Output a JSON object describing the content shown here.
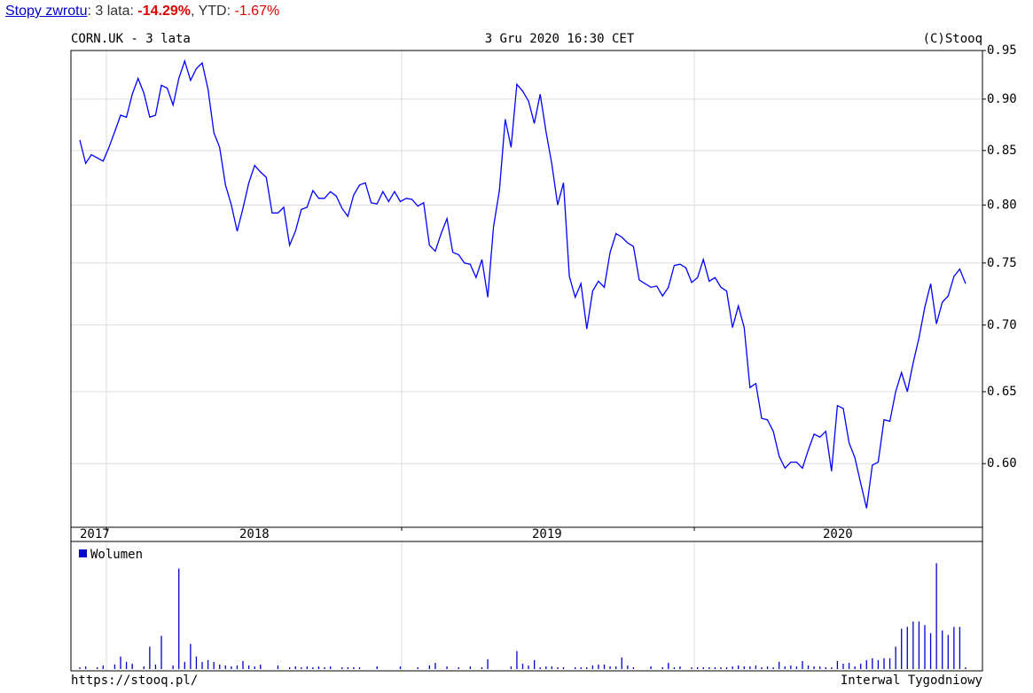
{
  "header": {
    "link": "Stopy zwrotu",
    "label1": ": 3 lata: ",
    "value1": "-14.29%",
    "label2": ", YTD: ",
    "value2": "-1.67%"
  },
  "chart_data": {
    "type": "line",
    "title": "CORN.UK - 3 lata",
    "date": "3 Gru 2020 16:30 CET",
    "copyright": "(C)Stooq",
    "footer_left": "https://stooq.pl/",
    "footer_right": "Interwal Tygodniowy",
    "log_scale": true,
    "grid": true,
    "color": "#0000ff",
    "ylim": [
      0.559,
      0.95
    ],
    "yticks": [
      {
        "value": 0.6,
        "label": "0.60"
      },
      0.65,
      {
        "value": 0.7,
        "label": "0.70"
      },
      0.75,
      {
        "value": 0.8,
        "label": "0.80"
      },
      0.85,
      {
        "value": 0.9,
        "label": "0.90"
      },
      0.95
    ],
    "x_labels": [
      "2017",
      "2018",
      "2019",
      "2020"
    ],
    "values": [
      0.86,
      0.838,
      0.846,
      0.843,
      0.84,
      0.853,
      0.868,
      0.884,
      0.882,
      0.905,
      0.921,
      0.906,
      0.882,
      0.884,
      0.914,
      0.911,
      0.894,
      0.921,
      0.939,
      0.919,
      0.931,
      0.937,
      0.91,
      0.867,
      0.853,
      0.818,
      0.8,
      0.777,
      0.797,
      0.82,
      0.836,
      0.83,
      0.825,
      0.793,
      0.793,
      0.798,
      0.765,
      0.777,
      0.796,
      0.798,
      0.813,
      0.806,
      0.806,
      0.812,
      0.808,
      0.797,
      0.79,
      0.809,
      0.818,
      0.82,
      0.802,
      0.801,
      0.812,
      0.803,
      0.812,
      0.803,
      0.806,
      0.805,
      0.799,
      0.802,
      0.765,
      0.76,
      0.775,
      0.788,
      0.759,
      0.757,
      0.75,
      0.749,
      0.738,
      0.753,
      0.722,
      0.781,
      0.813,
      0.88,
      0.853,
      0.915,
      0.908,
      0.898,
      0.876,
      0.905,
      0.868,
      0.837,
      0.8,
      0.82,
      0.739,
      0.722,
      0.733,
      0.697,
      0.727,
      0.735,
      0.73,
      0.759,
      0.775,
      0.772,
      0.767,
      0.764,
      0.736,
      0.733,
      0.73,
      0.731,
      0.723,
      0.73,
      0.748,
      0.749,
      0.746,
      0.734,
      0.738,
      0.753,
      0.735,
      0.738,
      0.73,
      0.727,
      0.698,
      0.715,
      0.698,
      0.653,
      0.656,
      0.631,
      0.63,
      0.622,
      0.605,
      0.597,
      0.601,
      0.601,
      0.597,
      0.609,
      0.62,
      0.618,
      0.622,
      0.595,
      0.64,
      0.638,
      0.614,
      0.604,
      0.587,
      0.571,
      0.599,
      0.601,
      0.63,
      0.629,
      0.65,
      0.664,
      0.65,
      0.671,
      0.69,
      0.714,
      0.733,
      0.701,
      0.718,
      0.723,
      0.739,
      0.745,
      0.733
    ],
    "volume": {
      "name": "Wolumen",
      "color": "#0000cc",
      "values": [
        2,
        3,
        0,
        2,
        4,
        0,
        5,
        14,
        8,
        6,
        0,
        3,
        25,
        5,
        37,
        0,
        4,
        112,
        8,
        28,
        14,
        8,
        10,
        8,
        5,
        4,
        3,
        4,
        9,
        4,
        3,
        5,
        0,
        0,
        4,
        0,
        2,
        3,
        2,
        3,
        2,
        3,
        2,
        3,
        0,
        2,
        2,
        2,
        2,
        0,
        0,
        3,
        0,
        0,
        0,
        3,
        0,
        0,
        2,
        0,
        4,
        7,
        0,
        3,
        0,
        2,
        0,
        3,
        0,
        2,
        11,
        0,
        0,
        0,
        3,
        20,
        6,
        4,
        10,
        2,
        3,
        3,
        2,
        2,
        0,
        2,
        2,
        2,
        4,
        5,
        5,
        3,
        3,
        13,
        4,
        2,
        0,
        0,
        3,
        0,
        2,
        7,
        2,
        3,
        0,
        2,
        2,
        2,
        2,
        2,
        2,
        2,
        3,
        4,
        3,
        3,
        4,
        2,
        3,
        2,
        8,
        3,
        4,
        3,
        9,
        4,
        3,
        3,
        2,
        2,
        9,
        6,
        7,
        3,
        6,
        10,
        12,
        10,
        12,
        12,
        25,
        45,
        47,
        53,
        53,
        49,
        40,
        118,
        43,
        38,
        47,
        47,
        2
      ]
    }
  }
}
